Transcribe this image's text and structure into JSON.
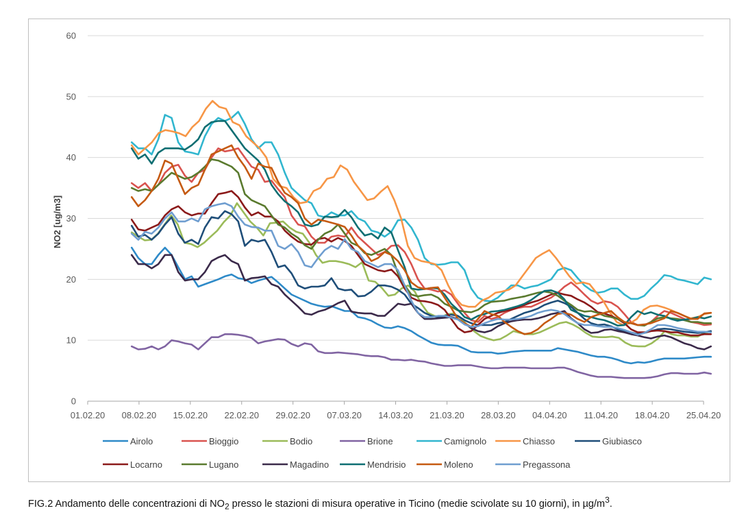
{
  "caption": {
    "prefix": "FIG.2 Andamento delle concentrazioni di NO",
    "sub": "2",
    "middle": " presso le stazioni di misura operative in Ticino (medie scivolate su 10 giorni), in µg/m",
    "sup": "3",
    "suffix": "."
  },
  "chart_data": {
    "type": "line",
    "title": "",
    "xlabel": "",
    "ylabel": "NO2 [ug/m3]",
    "ylim": [
      0,
      60
    ],
    "yticks": [
      0,
      10,
      20,
      30,
      40,
      50,
      60
    ],
    "xticks": [
      "01.02.20",
      "08.02.20",
      "15.02.20",
      "22.02.20",
      "29.02.20",
      "07.03.20",
      "14.03.20",
      "21.03.20",
      "28.03.20",
      "04.04.20",
      "11.04.20",
      "18.04.20",
      "25.04.20"
    ],
    "x_start": "07.02.20",
    "x_end": "26.04.20",
    "grid": "horizontal",
    "legend": "bottom",
    "series": [
      {
        "name": "Airolo",
        "color": "#2e8ac8",
        "values": [
          25.2,
          23.5,
          22.5,
          22.5,
          24,
          25.2,
          24,
          22,
          20,
          20.5,
          18.8,
          19.2,
          19.6,
          20,
          20.5,
          20.8,
          20.2,
          20,
          19.4,
          19.8,
          20.1,
          20.4,
          19.5,
          18.5,
          17.5,
          17,
          16.5,
          16,
          15.7,
          15.5,
          15.6,
          15.2,
          14.8,
          14.8,
          13.8,
          13.6,
          13.2,
          12.6,
          12.1,
          12,
          12.3,
          12,
          11.5,
          10.8,
          10.2,
          9.6,
          9.3,
          9.2,
          9.2,
          9.1,
          8.6,
          8.1,
          8,
          8,
          8,
          7.8,
          7.9,
          8.1,
          8.2,
          8.3,
          8.3,
          8.3,
          8.3,
          8.3,
          8.7,
          8.5,
          8.3,
          8.1,
          7.8,
          7.5,
          7.3,
          7.3,
          7.1,
          6.8,
          6.4,
          6.2,
          6.4,
          6.3,
          6.5,
          6.8,
          7,
          7,
          7,
          7,
          7.1,
          7.2,
          7.3,
          7.3
        ]
      },
      {
        "name": "Bioggio",
        "color": "#d9534f",
        "values": [
          35.8,
          35,
          35.8,
          34.5,
          35.5,
          37.5,
          38.5,
          38.8,
          37,
          36,
          37.5,
          38,
          40,
          41.5,
          41,
          41.2,
          41.5,
          40,
          38.5,
          38,
          36,
          36.2,
          34.8,
          33.5,
          30.5,
          29,
          28.7,
          27,
          26,
          26,
          27,
          27.2,
          27,
          28.5,
          27,
          26,
          25,
          24,
          24.5,
          25.5,
          25.6,
          24.5,
          22.5,
          20,
          18.5,
          18.3,
          18,
          18.2,
          17.5,
          16,
          14.5,
          13.3,
          13,
          14,
          13.5,
          13.8,
          14.5,
          15,
          15.3,
          15.5,
          15.5,
          16,
          16.5,
          17,
          17.8,
          18.8,
          19.5,
          18.6,
          17.5,
          16.5,
          16,
          16.4,
          16.2,
          15.5,
          14.3,
          13,
          12.5,
          12.5,
          13,
          14,
          14.8,
          14.5,
          14,
          13.5,
          13,
          12.8,
          12.5,
          12.6
        ]
      },
      {
        "name": "Bodio",
        "color": "#9bbb59",
        "values": [
          27.7,
          27,
          26.4,
          26.5,
          27.5,
          29,
          30.5,
          29,
          26,
          25.8,
          25.3,
          26,
          27,
          28,
          29.4,
          30.5,
          32.5,
          31,
          29.5,
          28.5,
          27.2,
          29.2,
          29.3,
          29.5,
          28.5,
          27.8,
          27.5,
          26,
          24,
          22.7,
          23,
          23,
          22.8,
          22.5,
          22,
          22.8,
          19.8,
          19.6,
          18.6,
          17.3,
          17.5,
          18.5,
          19,
          18,
          16,
          14.5,
          14,
          13.8,
          14.3,
          14.4,
          13.6,
          12.5,
          11.5,
          10.7,
          10.3,
          10,
          10.2,
          10.8,
          11.5,
          11.2,
          11,
          11,
          11.3,
          11.8,
          12.3,
          12.8,
          13,
          12.6,
          12,
          11.2,
          10.6,
          10.5,
          10.5,
          10.6,
          10.4,
          9.6,
          9.1,
          9,
          9,
          9.5,
          10.3,
          11.5,
          11,
          10.8,
          10.8,
          10.6,
          10.6,
          11.2,
          11.4
        ]
      },
      {
        "name": "Brione",
        "color": "#8064a2",
        "values": [
          9,
          8.5,
          8.6,
          9,
          8.5,
          9,
          10,
          9.8,
          9.5,
          9.3,
          8.5,
          9.5,
          10.5,
          10.5,
          11,
          11,
          10.9,
          10.7,
          10.4,
          9.5,
          9.8,
          10,
          10.2,
          10.1,
          9.4,
          9,
          9.5,
          9.3,
          8.2,
          7.9,
          7.9,
          8,
          7.9,
          7.8,
          7.7,
          7.5,
          7.4,
          7.4,
          7.2,
          6.8,
          6.8,
          6.7,
          6.8,
          6.6,
          6.5,
          6.2,
          6,
          5.8,
          5.8,
          5.9,
          5.9,
          5.9,
          5.7,
          5.5,
          5.4,
          5.4,
          5.5,
          5.5,
          5.5,
          5.5,
          5.4,
          5.4,
          5.4,
          5.4,
          5.5,
          5.5,
          5.2,
          4.8,
          4.5,
          4.2,
          4,
          4,
          4,
          3.9,
          3.8,
          3.8,
          3.8,
          3.8,
          3.9,
          4.1,
          4.4,
          4.6,
          4.6,
          4.5,
          4.5,
          4.5,
          4.7,
          4.5
        ]
      },
      {
        "name": "Camignolo",
        "color": "#31b6cf",
        "values": [
          42.5,
          41.5,
          41.5,
          40.5,
          43,
          47,
          46.5,
          42.5,
          41,
          40.8,
          40.5,
          43.5,
          45.5,
          46.5,
          46,
          46.5,
          47.5,
          45.5,
          43,
          41.5,
          42.5,
          42.5,
          40.5,
          37.5,
          35,
          34,
          33,
          32.5,
          30.5,
          30.2,
          31,
          30.5,
          30.5,
          31.2,
          30,
          29.5,
          28,
          27.7,
          27,
          27.8,
          29.7,
          29.8,
          28.5,
          26.5,
          23.5,
          22.5,
          22.4,
          22.5,
          22.8,
          22.8,
          21.5,
          18.5,
          17,
          16.5,
          16.4,
          17,
          18,
          19,
          19,
          18.5,
          18.8,
          19,
          19.5,
          20,
          21.5,
          21.9,
          21.5,
          20.2,
          19,
          18.2,
          17.8,
          18,
          18.5,
          18.5,
          17.5,
          16.8,
          16.8,
          17.3,
          18.5,
          19.5,
          20.7,
          20.5,
          20,
          19.8,
          19.5,
          19.2,
          20.3,
          20
        ]
      },
      {
        "name": "Chiasso",
        "color": "#f79646",
        "values": [
          42,
          40.5,
          41.5,
          42.5,
          44,
          44.5,
          44.3,
          44,
          43.5,
          45,
          46,
          48,
          49.3,
          48.3,
          48,
          45.8,
          45.3,
          43.5,
          42.5,
          41.5,
          40,
          36.5,
          35.3,
          35,
          33.5,
          32.5,
          32.7,
          34.5,
          35,
          36.5,
          36.8,
          38.7,
          38,
          36,
          34.5,
          33,
          33.3,
          34.4,
          35.3,
          33,
          30,
          25.5,
          23.5,
          23,
          22.8,
          22.5,
          21.5,
          19,
          17,
          15.8,
          15.5,
          15.5,
          16.5,
          17,
          17.8,
          18,
          18.3,
          19,
          20.5,
          22,
          23.5,
          24.2,
          24.8,
          23.5,
          22,
          20.5,
          19.3,
          19.5,
          19.2,
          17.8,
          16.5,
          14.6,
          13,
          12.5,
          12.8,
          13.5,
          15,
          15.6,
          15.7,
          15.4,
          15,
          14.5,
          14,
          13.6,
          13.8,
          14.3,
          14.5
        ]
      },
      {
        "name": "Giubiasco",
        "color": "#1f4e79",
        "values": [
          28.8,
          27,
          27.3,
          26.5,
          27.5,
          29,
          30.2,
          27.5,
          26,
          26.5,
          25.8,
          28.5,
          30.2,
          30,
          31.2,
          30.7,
          29.5,
          25.5,
          26.5,
          26.2,
          26.5,
          24.5,
          22,
          22.3,
          21,
          19,
          18.5,
          18.8,
          18.8,
          19,
          20.2,
          18.5,
          18.2,
          18.3,
          17.2,
          17.3,
          18,
          19,
          19,
          18.8,
          18.3,
          17.5,
          16,
          15.3,
          14.5,
          14,
          13.8,
          14,
          14.2,
          14,
          13.3,
          12.8,
          12.5,
          12.5,
          12.5,
          12.8,
          13,
          13.5,
          14,
          14.5,
          14.8,
          15.2,
          15.8,
          16.2,
          16.5,
          16.1,
          15.5,
          14.5,
          13.5,
          12.8,
          12.5,
          12.6,
          12.3,
          11.8,
          11.5,
          11.3,
          11,
          11.2,
          11.5,
          11.8,
          11.9,
          11.8,
          11.6,
          11.4,
          11.3,
          11.2,
          11.3,
          11.5
        ]
      },
      {
        "name": "Locarno",
        "color": "#8b1a1a",
        "values": [
          29.8,
          28.2,
          28,
          28.5,
          29,
          30.5,
          31.5,
          32,
          31,
          30.5,
          30.8,
          30.8,
          32.5,
          34,
          34.2,
          34.5,
          33.5,
          31.8,
          30.5,
          31,
          30.3,
          30.3,
          29.5,
          28,
          27,
          26.2,
          25.8,
          25.7,
          26.6,
          26.8,
          26.2,
          26.8,
          26.3,
          25.5,
          24,
          22.5,
          22,
          21.5,
          21.3,
          21.6,
          20.5,
          18.5,
          17,
          16.5,
          16.4,
          16.2,
          15.8,
          15,
          13.5,
          12,
          11.3,
          11.5,
          12.5,
          13.5,
          14,
          14.5,
          14.8,
          15,
          15.4,
          15.8,
          16.2,
          16.5,
          17,
          17.5,
          17.8,
          17.5,
          17.3,
          16.7,
          16.2,
          15.5,
          14.6,
          14.4,
          14,
          13.5,
          12.8,
          11.8,
          11.3,
          11.3,
          11.5,
          11.6,
          11.5,
          11.3,
          11.3,
          11,
          10.8,
          10.8,
          11,
          11
        ]
      },
      {
        "name": "Lugano",
        "color": "#5a7a2e",
        "values": [
          35,
          34.5,
          34.8,
          34.5,
          35.5,
          36.5,
          37.5,
          37,
          36.5,
          36.8,
          37.5,
          38.5,
          39.7,
          39.5,
          39,
          38.5,
          37.5,
          34,
          33,
          32.5,
          32,
          30.5,
          29,
          28.5,
          27.5,
          26.8,
          25.6,
          25,
          26.5,
          27.5,
          28,
          29,
          27.5,
          26,
          25.5,
          24.3,
          24,
          24.5,
          25,
          24,
          21,
          19,
          17.5,
          17.2,
          17.4,
          17.5,
          17,
          16,
          15.5,
          14.9,
          14.7,
          14.6,
          15,
          15.8,
          16.3,
          16.4,
          16.5,
          16.8,
          17,
          17.2,
          17.5,
          17.8,
          18,
          17.8,
          17.3,
          16.5,
          15.8,
          15,
          14.7,
          14.8,
          14.5,
          14,
          13.8,
          13.5,
          13,
          12.8,
          12.5,
          12.4,
          13,
          13.6,
          13.8,
          13.6,
          13.5,
          13.3,
          13,
          13,
          12.8,
          12.8
        ]
      },
      {
        "name": "Magadino",
        "color": "#3b2a4a",
        "values": [
          24,
          22.5,
          22.5,
          21.8,
          22.5,
          24,
          24,
          21.2,
          19.8,
          20,
          20,
          21.2,
          23,
          23.6,
          24,
          23,
          22.5,
          19.8,
          20.2,
          20.3,
          20.5,
          19.2,
          18.8,
          17.5,
          16.5,
          15.5,
          14.4,
          14.2,
          14.7,
          15,
          15.5,
          16.1,
          16.5,
          14.7,
          14.5,
          14.4,
          14.4,
          14,
          14,
          15,
          16,
          15.8,
          16,
          14.5,
          13.5,
          13.5,
          13.6,
          13.7,
          13.8,
          13.5,
          12.8,
          12,
          11.5,
          11.3,
          11.6,
          12.3,
          12.8,
          13.1,
          13.3,
          13.4,
          13.4,
          13.6,
          13.9,
          14.3,
          14.5,
          14.8,
          13.6,
          12.8,
          11.8,
          11.2,
          11.3,
          11.7,
          11.8,
          11.5,
          11.3,
          11,
          10.8,
          10.5,
          10.3,
          10.6,
          10.8,
          10.5,
          10,
          9.5,
          9.2,
          8.7,
          8.5,
          9
        ]
      },
      {
        "name": "Mendrisio",
        "color": "#0e6e72",
        "values": [
          41.5,
          39.8,
          40.5,
          39,
          40.8,
          41.5,
          41.5,
          41.5,
          41.3,
          42,
          43,
          45,
          45.8,
          46,
          46,
          44.5,
          43,
          41.5,
          40.5,
          39.5,
          38,
          35.5,
          34,
          32.8,
          32,
          31,
          29,
          28.7,
          29,
          30.3,
          30.2,
          30.3,
          31.4,
          30.2,
          28.5,
          27.2,
          27.5,
          26.7,
          28.5,
          27.7,
          24.8,
          22,
          18.5,
          18.3,
          18.4,
          18.6,
          18.5,
          17.5,
          16,
          15,
          13.8,
          13.4,
          14,
          14.3,
          14.7,
          14.8,
          15,
          15.3,
          15.6,
          16,
          16.6,
          17.4,
          18.1,
          18.2,
          17.8,
          16.7,
          15,
          14.5,
          14,
          13.8,
          13.5,
          13.3,
          12.9,
          12.4,
          12.5,
          13.8,
          14.8,
          14.3,
          14.6,
          14.2,
          14,
          13.5,
          13.2,
          13.4,
          13.5,
          13.8,
          13.6,
          13.9
        ]
      },
      {
        "name": "Moleno",
        "color": "#c55a11",
        "values": [
          33.5,
          32,
          33,
          34.5,
          36.5,
          39.5,
          39,
          36.5,
          34,
          35,
          35.5,
          38,
          40.5,
          41,
          41.5,
          42,
          40,
          38.5,
          36.5,
          39,
          38.5,
          38.3,
          36,
          34.2,
          33.5,
          32.5,
          30,
          29,
          29.8,
          29.6,
          29.3,
          29,
          28.6,
          27.2,
          25.5,
          24.5,
          23,
          23.5,
          24.5,
          24,
          23,
          21.5,
          19.5,
          18.7,
          18.4,
          18.6,
          18.7,
          17,
          15.3,
          13.5,
          12.8,
          12.2,
          13.5,
          14.8,
          14.3,
          14,
          13,
          12.2,
          11.5,
          11,
          11.2,
          11.8,
          12.8,
          13.5,
          14.3,
          14.5,
          14.2,
          13.5,
          13,
          13.8,
          14.2,
          14.5,
          14.8,
          13.8,
          13,
          12.8,
          12.5,
          12.6,
          12.8,
          13.2,
          13.6,
          14.8,
          14.5,
          14,
          13.5,
          13.5,
          14.4,
          14.5
        ]
      },
      {
        "name": "Pregassona",
        "color": "#6f9ed0",
        "values": [
          27.5,
          26.5,
          27.8,
          27.5,
          28.5,
          30,
          31,
          29.5,
          29.5,
          30,
          29.5,
          31.5,
          32,
          32.3,
          32.5,
          32,
          30.3,
          29,
          28.6,
          28.5,
          28,
          28,
          25.5,
          25,
          25.8,
          24.5,
          22.3,
          22,
          23.5,
          24.8,
          25.5,
          25,
          26.6,
          25,
          24.5,
          23,
          22.5,
          22,
          22.5,
          22.5,
          21.5,
          19,
          16.5,
          14.5,
          13.8,
          13.8,
          14,
          14,
          13.7,
          13.4,
          12.6,
          12.2,
          12.3,
          12.8,
          13.2,
          13.5,
          13.4,
          13.4,
          13.5,
          13.7,
          14,
          14.5,
          14.8,
          15,
          14.8,
          14.3,
          13.5,
          12.8,
          12.5,
          12.5,
          12.3,
          12.2,
          12.2,
          12,
          11.7,
          11.3,
          10.9,
          11.2,
          11.8,
          12.5,
          12.5,
          12.3,
          12,
          11.8,
          11.6,
          11.4,
          11.4,
          11.3
        ]
      }
    ]
  }
}
